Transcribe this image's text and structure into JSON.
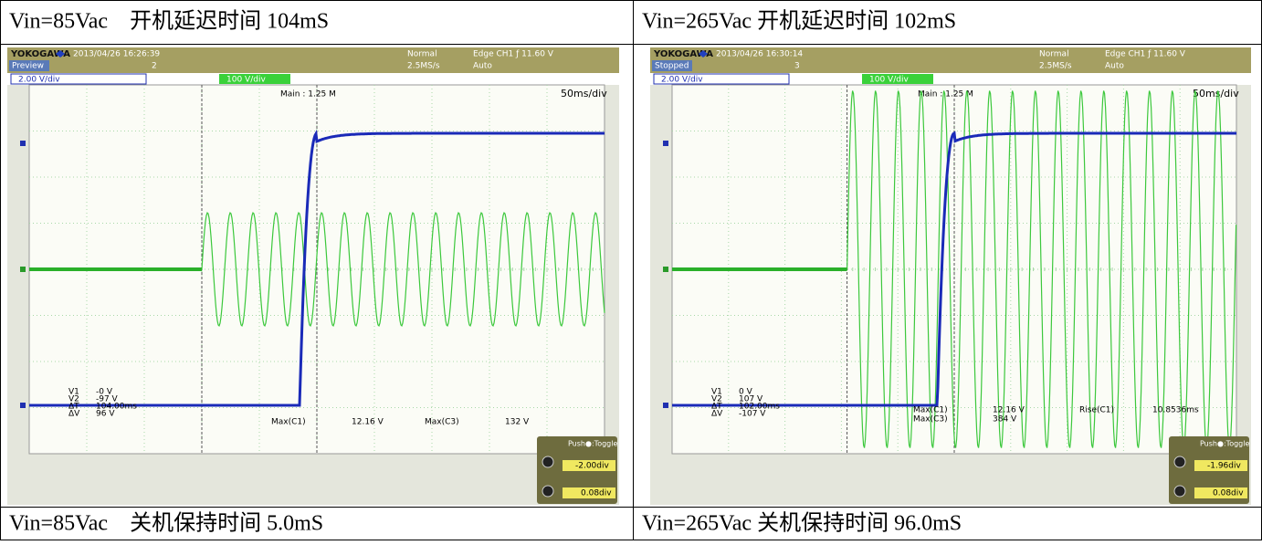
{
  "header": [
    "Vin=85Vac　开机延迟时间 104mS",
    "Vin=265Vac 开机延迟时间 102mS"
  ],
  "scopes": [
    {
      "brand": "YOKOGAWA",
      "timestamp": "2013/04/26 16:26:39",
      "status": "Preview",
      "count": "2",
      "mode": "Normal",
      "rate": "2.5MS/s",
      "trigger": "Edge CH1 ƒ 11.60 V",
      "trigger_mode": "Auto",
      "ch1_scale": "2.00 V/div",
      "ch3_scale": "100 V/div",
      "main": "Main : 1.25 M",
      "timebase": "50ms/div",
      "cursor_labels": [
        "V1",
        "V2",
        "ΔT",
        "ΔV"
      ],
      "cursor_values": [
        "-0 V",
        "-97 V",
        "104.00ms",
        "96 V"
      ],
      "measurements": [
        [
          "Max(C1)",
          "12.16 V"
        ],
        [
          "Max(C3)",
          "132 V"
        ]
      ],
      "push": "Push●:Toggle",
      "cursor1": "-2.00div",
      "cursor2": "0.08div"
    },
    {
      "brand": "YOKOGAWA",
      "timestamp": "2013/04/26 16:30:14",
      "status": "Stopped",
      "count": "3",
      "mode": "Normal",
      "rate": "2.5MS/s",
      "trigger": "Edge CH1 ƒ 11.60 V",
      "trigger_mode": "Auto",
      "ch1_scale": "2.00 V/div",
      "ch3_scale": "100 V/div",
      "main": "Main : 1.25 M",
      "timebase": "50ms/div",
      "cursor_labels": [
        "V1",
        "V2",
        "ΔT",
        "ΔV"
      ],
      "cursor_values": [
        "0 V",
        "107 V",
        "102.00ms",
        "-107 V"
      ],
      "measurements": [
        [
          "Max(C1)",
          "12.16 V"
        ],
        [
          "Max(C3)",
          "384 V"
        ],
        [
          "Rise(C1)",
          "10.8536ms"
        ]
      ],
      "push": "Push●:Toggle",
      "cursor1": "-1.96div",
      "cursor2": "0.08div"
    }
  ],
  "footer": [
    "Vin=85Vac　关机保持时间 5.0mS",
    "Vin=265Vac 关机保持时间 96.0mS"
  ]
}
